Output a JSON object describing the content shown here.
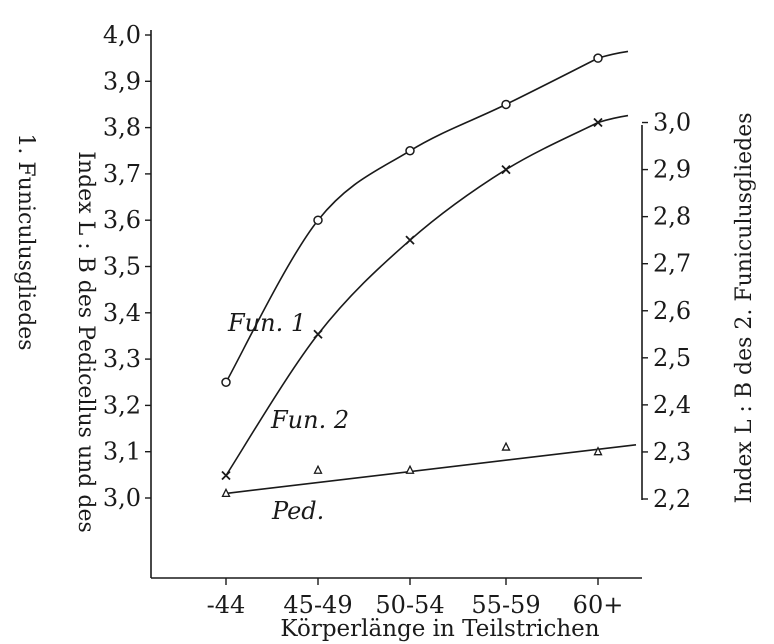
{
  "chart_data": {
    "type": "line",
    "categories": [
      "-44",
      "45-49",
      "50-54",
      "55-59",
      "60+"
    ],
    "xlabel": "Körperlänge in Teilstrichen",
    "ylabel_left": "Index L : B des Pedicellus und des 1. Funiculusgliedes",
    "ylabel_left_lines": [
      "Index L : B des Pedicellus und des",
      "1. Funiculusgliedes"
    ],
    "ylabel_right": "Index L : B des 2. Funiculusgliedes",
    "y_left": {
      "ticks": [
        "3,0",
        "3,1",
        "3,2",
        "3,3",
        "3,4",
        "3,5",
        "3,6",
        "3,7",
        "3,8",
        "3,9",
        "4,0"
      ],
      "range": [
        3.0,
        4.0
      ]
    },
    "y_right": {
      "ticks": [
        "2,2",
        "2,3",
        "2,4",
        "2,5",
        "2,6",
        "2,7",
        "2,8",
        "2,9",
        "3,0"
      ],
      "range": [
        2.2,
        3.0
      ]
    },
    "series": [
      {
        "name": "Fun. 1",
        "axis": "left",
        "marker": "circle",
        "values": [
          3.25,
          3.6,
          3.75,
          3.85,
          3.95
        ]
      },
      {
        "name": "Fun. 2",
        "axis": "right",
        "marker": "x",
        "values": [
          2.25,
          2.55,
          2.75,
          2.9,
          3.0
        ]
      },
      {
        "name": "Ped.",
        "axis": "left",
        "marker": "triangle",
        "values": [
          3.01,
          3.06,
          3.06,
          3.11,
          3.1
        ]
      }
    ],
    "grid": false,
    "legend": "none"
  }
}
